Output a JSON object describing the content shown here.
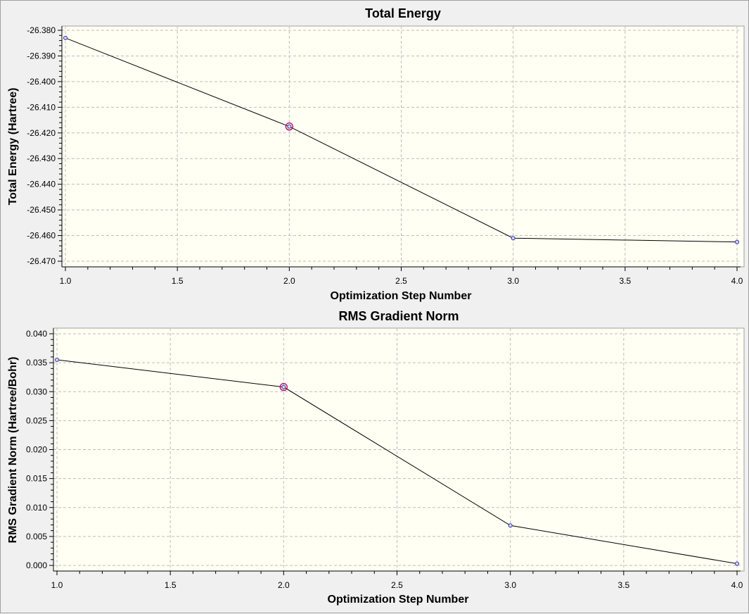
{
  "chart_data": [
    {
      "type": "line",
      "title": "Total Energy",
      "xlabel": "Optimization Step Number",
      "ylabel": "Total Energy (Hartree)",
      "xlim": [
        1.0,
        4.0
      ],
      "ylim": [
        -26.47,
        -26.38
      ],
      "x_ticks": [
        "1.0",
        "1.5",
        "2.0",
        "2.5",
        "3.0",
        "3.5",
        "4.0"
      ],
      "y_ticks": [
        "-26.380",
        "-26.390",
        "-26.400",
        "-26.410",
        "-26.420",
        "-26.430",
        "-26.440",
        "-26.450",
        "-26.460",
        "-26.470"
      ],
      "grid": true,
      "highlighted_x": 2,
      "series": [
        {
          "x": [
            1,
            2,
            3,
            4
          ],
          "values": [
            -26.383,
            -26.4175,
            -26.461,
            -26.4625
          ]
        }
      ]
    },
    {
      "type": "line",
      "title": "RMS Gradient Norm",
      "xlabel": "Optimization Step Number",
      "ylabel": "RMS Gradient Norm (Hartree/Bohr)",
      "xlim": [
        1.0,
        4.0
      ],
      "ylim": [
        0.0,
        0.04
      ],
      "x_ticks": [
        "1.0",
        "1.5",
        "2.0",
        "2.5",
        "3.0",
        "3.5",
        "4.0"
      ],
      "y_ticks": [
        "0.040",
        "0.035",
        "0.030",
        "0.025",
        "0.020",
        "0.015",
        "0.010",
        "0.005",
        "0.000"
      ],
      "grid": true,
      "highlighted_x": 2,
      "series": [
        {
          "x": [
            1,
            2,
            3,
            4
          ],
          "values": [
            0.0355,
            0.0308,
            0.0069,
            0.0003
          ]
        }
      ]
    }
  ],
  "colors": {
    "plot_background": "#fffff4",
    "grid": "#bdbdbd",
    "line": "#000000",
    "marker_edge": "#2a2aa8",
    "marker_fill": "#d6d6ff",
    "highlight": "#c0186a"
  }
}
